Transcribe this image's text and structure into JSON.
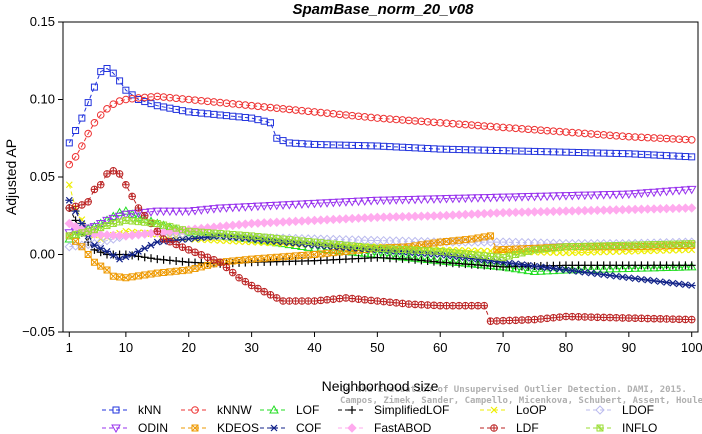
{
  "chart_data": {
    "type": "line",
    "title": "SpamBase_norm_20_v08",
    "xlabel": "Neighborhood size",
    "ylabel": "Adjusted AP",
    "xlim": [
      0,
      101
    ],
    "ylim": [
      -0.05,
      0.15
    ],
    "xticks": [
      1,
      10,
      20,
      30,
      40,
      50,
      60,
      70,
      80,
      90,
      100
    ],
    "yticks": [
      -0.05,
      0.0,
      0.05,
      0.1,
      0.15
    ],
    "ytick_labels": [
      "−0.05",
      "0.00",
      "0.05",
      "0.10",
      "0.15"
    ],
    "grid": false,
    "legend_position": "bottom",
    "watermark": [
      "Campos, Zimek, Sander, Campello, Micenkova, Schubert, Assent, Houle",
      "On the Evaluation of Unsupervised Outlier Detection. DAMI, 2015."
    ],
    "series": [
      {
        "name": "kNN",
        "color": "#2233dd",
        "marker": "square",
        "points": [
          [
            1,
            0.072
          ],
          [
            2,
            0.08
          ],
          [
            3,
            0.088
          ],
          [
            4,
            0.098
          ],
          [
            5,
            0.108
          ],
          [
            6,
            0.118
          ],
          [
            7,
            0.12
          ],
          [
            8,
            0.117
          ],
          [
            9,
            0.112
          ],
          [
            10,
            0.106
          ],
          [
            12,
            0.1
          ],
          [
            15,
            0.096
          ],
          [
            20,
            0.092
          ],
          [
            25,
            0.09
          ],
          [
            30,
            0.088
          ],
          [
            33,
            0.085
          ],
          [
            34,
            0.075
          ],
          [
            36,
            0.072
          ],
          [
            40,
            0.071
          ],
          [
            50,
            0.07
          ],
          [
            60,
            0.068
          ],
          [
            70,
            0.067
          ],
          [
            80,
            0.066
          ],
          [
            90,
            0.065
          ],
          [
            100,
            0.063
          ]
        ]
      },
      {
        "name": "kNNW",
        "color": "#ee3333",
        "marker": "circle",
        "points": [
          [
            1,
            0.058
          ],
          [
            2,
            0.063
          ],
          [
            3,
            0.07
          ],
          [
            4,
            0.078
          ],
          [
            5,
            0.085
          ],
          [
            6,
            0.09
          ],
          [
            7,
            0.094
          ],
          [
            8,
            0.097
          ],
          [
            9,
            0.099
          ],
          [
            10,
            0.1
          ],
          [
            12,
            0.101
          ],
          [
            15,
            0.102
          ],
          [
            20,
            0.1
          ],
          [
            25,
            0.098
          ],
          [
            30,
            0.096
          ],
          [
            40,
            0.092
          ],
          [
            50,
            0.088
          ],
          [
            60,
            0.085
          ],
          [
            70,
            0.082
          ],
          [
            80,
            0.079
          ],
          [
            90,
            0.076
          ],
          [
            100,
            0.074
          ]
        ]
      },
      {
        "name": "LOF",
        "color": "#22dd22",
        "marker": "triangle",
        "points": [
          [
            1,
            0.01
          ],
          [
            3,
            0.015
          ],
          [
            5,
            0.018
          ],
          [
            7,
            0.022
          ],
          [
            9,
            0.027
          ],
          [
            10,
            0.028
          ],
          [
            12,
            0.024
          ],
          [
            15,
            0.02
          ],
          [
            20,
            0.014
          ],
          [
            25,
            0.012
          ],
          [
            30,
            0.01
          ],
          [
            40,
            0.004
          ],
          [
            50,
            0.0
          ],
          [
            60,
            -0.004
          ],
          [
            70,
            -0.008
          ],
          [
            75,
            -0.011
          ],
          [
            80,
            -0.01
          ],
          [
            90,
            -0.009
          ],
          [
            100,
            -0.008
          ]
        ]
      },
      {
        "name": "SimplifiedLOF",
        "color": "#000000",
        "marker": "plus",
        "points": [
          [
            1,
            0.03
          ],
          [
            2,
            0.022
          ],
          [
            3,
            0.014
          ],
          [
            4,
            0.008
          ],
          [
            5,
            0.003
          ],
          [
            7,
            0.0
          ],
          [
            10,
            0.0
          ],
          [
            15,
            -0.003
          ],
          [
            20,
            -0.005
          ],
          [
            25,
            -0.006
          ],
          [
            30,
            -0.005
          ],
          [
            40,
            -0.004
          ],
          [
            50,
            -0.002
          ],
          [
            55,
            -0.003
          ],
          [
            60,
            -0.005
          ],
          [
            70,
            -0.008
          ],
          [
            80,
            -0.007
          ],
          [
            90,
            -0.007
          ],
          [
            100,
            -0.007
          ]
        ]
      },
      {
        "name": "LoOP",
        "color": "#eeee00",
        "marker": "x",
        "points": [
          [
            1,
            0.045
          ],
          [
            2,
            0.03
          ],
          [
            4,
            0.015
          ],
          [
            6,
            0.01
          ],
          [
            10,
            0.015
          ],
          [
            15,
            0.013
          ],
          [
            20,
            0.01
          ],
          [
            30,
            0.008
          ],
          [
            40,
            0.006
          ],
          [
            50,
            0.005
          ],
          [
            60,
            0.003
          ],
          [
            70,
            0.002
          ],
          [
            80,
            0.001
          ],
          [
            90,
            0.002
          ],
          [
            100,
            0.003
          ]
        ]
      },
      {
        "name": "LDOF",
        "color": "#bbbbee",
        "marker": "diamond",
        "points": [
          [
            1,
            0.005
          ],
          [
            5,
            0.007
          ],
          [
            10,
            0.012
          ],
          [
            15,
            0.014
          ],
          [
            20,
            0.013
          ],
          [
            30,
            0.011
          ],
          [
            40,
            0.01
          ],
          [
            50,
            0.009
          ],
          [
            60,
            0.008
          ],
          [
            70,
            0.008
          ],
          [
            80,
            0.007
          ],
          [
            90,
            0.007
          ],
          [
            100,
            0.008
          ]
        ]
      },
      {
        "name": "ODIN",
        "color": "#9933ee",
        "marker": "triangle-down",
        "points": [
          [
            1,
            0.014
          ],
          [
            3,
            0.016
          ],
          [
            5,
            0.018
          ],
          [
            7,
            0.022
          ],
          [
            10,
            0.026
          ],
          [
            15,
            0.028
          ],
          [
            20,
            0.028
          ],
          [
            25,
            0.03
          ],
          [
            30,
            0.031
          ],
          [
            40,
            0.033
          ],
          [
            50,
            0.035
          ],
          [
            60,
            0.036
          ],
          [
            70,
            0.037
          ],
          [
            80,
            0.038
          ],
          [
            90,
            0.039
          ],
          [
            100,
            0.042
          ]
        ]
      },
      {
        "name": "KDEOS",
        "color": "#ee9900",
        "marker": "square-x",
        "points": [
          [
            1,
            0.012
          ],
          [
            3,
            0.005
          ],
          [
            5,
            -0.005
          ],
          [
            7,
            -0.01
          ],
          [
            8,
            -0.014
          ],
          [
            10,
            -0.015
          ],
          [
            15,
            -0.012
          ],
          [
            20,
            -0.01
          ],
          [
            25,
            -0.005
          ],
          [
            30,
            -0.003
          ],
          [
            40,
            0.0
          ],
          [
            50,
            0.004
          ],
          [
            55,
            0.005
          ],
          [
            60,
            0.008
          ],
          [
            65,
            0.01
          ],
          [
            68,
            0.012
          ],
          [
            69,
            0.003
          ],
          [
            75,
            0.004
          ],
          [
            80,
            0.005
          ],
          [
            90,
            0.005
          ],
          [
            100,
            0.006
          ]
        ]
      },
      {
        "name": "COF",
        "color": "#112288",
        "marker": "asterisk",
        "points": [
          [
            1,
            0.035
          ],
          [
            2,
            0.028
          ],
          [
            3,
            0.02
          ],
          [
            4,
            0.012
          ],
          [
            5,
            0.006
          ],
          [
            7,
            0.002
          ],
          [
            9,
            -0.003
          ],
          [
            11,
            0.0
          ],
          [
            13,
            0.004
          ],
          [
            15,
            0.008
          ],
          [
            20,
            0.01
          ],
          [
            25,
            0.012
          ],
          [
            30,
            0.01
          ],
          [
            35,
            0.008
          ],
          [
            40,
            0.006
          ],
          [
            50,
            0.003
          ],
          [
            60,
            0.0
          ],
          [
            70,
            -0.005
          ],
          [
            80,
            -0.01
          ],
          [
            90,
            -0.015
          ],
          [
            100,
            -0.02
          ]
        ]
      },
      {
        "name": "FastABOD",
        "color": "#ffaaee",
        "marker": "diamond-filled",
        "points": [
          [
            1,
            0.02
          ],
          [
            3,
            0.016
          ],
          [
            5,
            0.013
          ],
          [
            10,
            0.012
          ],
          [
            15,
            0.014
          ],
          [
            20,
            0.016
          ],
          [
            30,
            0.02
          ],
          [
            40,
            0.022
          ],
          [
            50,
            0.024
          ],
          [
            60,
            0.025
          ],
          [
            70,
            0.027
          ],
          [
            80,
            0.028
          ],
          [
            90,
            0.029
          ],
          [
            100,
            0.03
          ]
        ]
      },
      {
        "name": "LDF",
        "color": "#bb2222",
        "marker": "circle-plus",
        "points": [
          [
            1,
            0.03
          ],
          [
            3,
            0.032
          ],
          [
            4,
            0.034
          ],
          [
            5,
            0.042
          ],
          [
            6,
            0.045
          ],
          [
            7,
            0.052
          ],
          [
            8,
            0.054
          ],
          [
            9,
            0.052
          ],
          [
            10,
            0.045
          ],
          [
            12,
            0.03
          ],
          [
            14,
            0.02
          ],
          [
            16,
            0.01
          ],
          [
            20,
            0.003
          ],
          [
            25,
            -0.005
          ],
          [
            28,
            -0.015
          ],
          [
            30,
            -0.02
          ],
          [
            35,
            -0.03
          ],
          [
            40,
            -0.03
          ],
          [
            45,
            -0.028
          ],
          [
            50,
            -0.03
          ],
          [
            55,
            -0.032
          ],
          [
            60,
            -0.033
          ],
          [
            65,
            -0.033
          ],
          [
            67,
            -0.033
          ],
          [
            68,
            -0.043
          ],
          [
            75,
            -0.042
          ],
          [
            80,
            -0.04
          ],
          [
            90,
            -0.041
          ],
          [
            100,
            -0.042
          ]
        ]
      },
      {
        "name": "INFLO",
        "color": "#99dd33",
        "marker": "square-star",
        "points": [
          [
            1,
            0.012
          ],
          [
            3,
            0.014
          ],
          [
            5,
            0.016
          ],
          [
            8,
            0.02
          ],
          [
            10,
            0.022
          ],
          [
            15,
            0.02
          ],
          [
            20,
            0.015
          ],
          [
            30,
            0.012
          ],
          [
            40,
            0.008
          ],
          [
            50,
            0.004
          ],
          [
            60,
            0.002
          ],
          [
            70,
            -0.002
          ],
          [
            75,
            0.003
          ],
          [
            80,
            0.005
          ],
          [
            90,
            0.006
          ],
          [
            100,
            0.007
          ]
        ]
      }
    ]
  }
}
